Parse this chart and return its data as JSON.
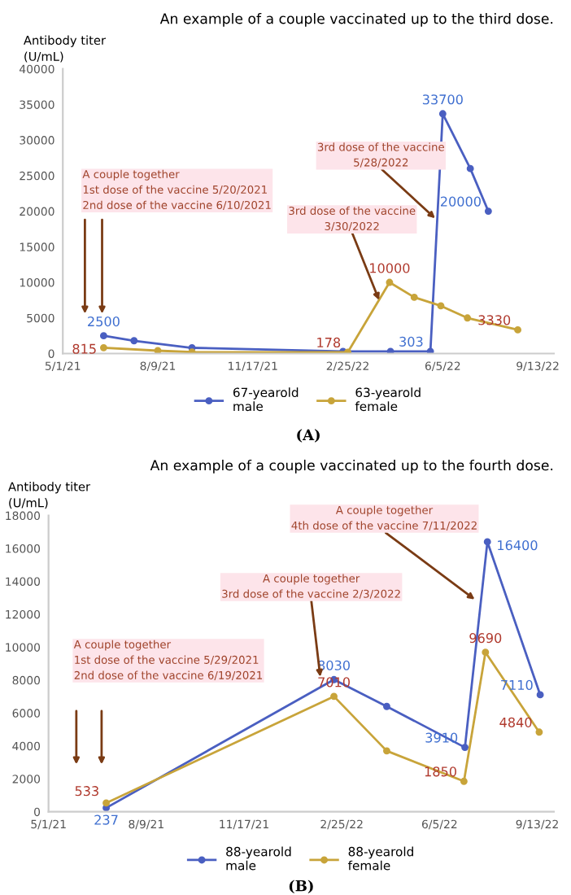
{
  "chart_data": [
    {
      "type": "line",
      "title": "An example of a couple vaccinated up to the third dose.",
      "ylabel": "Antibody titer\n(U/mL)",
      "ylim": [
        0,
        40000
      ],
      "yticks": [
        0,
        5000,
        10000,
        15000,
        20000,
        25000,
        30000,
        35000,
        40000
      ],
      "xlim": [
        "2021-05-01",
        "2022-09-30"
      ],
      "xticks": [
        {
          "value": "2021-05-01",
          "label": "5/1/21"
        },
        {
          "value": "2021-08-09",
          "label": "8/9/21"
        },
        {
          "value": "2021-11-17",
          "label": "11/17/21"
        },
        {
          "value": "2022-02-25",
          "label": "2/25/22"
        },
        {
          "value": "2022-06-05",
          "label": "6/5/22"
        },
        {
          "value": "2022-09-13",
          "label": "9/13/22"
        }
      ],
      "marker": "circle",
      "grid": false,
      "legend": "bottom",
      "series": [
        {
          "name": "67-yearold\nmale",
          "color": "#4a5fc1",
          "x": [
            "2021-06-13",
            "2021-07-15",
            "2021-09-14",
            "2022-02-20",
            "2022-04-11",
            "2022-05-23",
            "2022-06-05",
            "2022-07-04",
            "2022-07-23"
          ],
          "values": [
            2500,
            1800,
            800,
            300,
            300,
            303,
            33700,
            26000,
            20000
          ],
          "value_labels": [
            "2500",
            null,
            null,
            null,
            null,
            "303",
            "33700",
            null,
            "20000"
          ]
        },
        {
          "name": "63-yearold\nfemale",
          "color": "#c8a43a",
          "x": [
            "2021-06-13",
            "2021-08-09",
            "2021-09-14",
            "2022-02-25",
            "2022-04-10",
            "2022-05-06",
            "2022-06-03",
            "2022-07-01",
            "2022-08-23"
          ],
          "values": [
            815,
            400,
            200,
            178,
            10000,
            7900,
            6700,
            5000,
            3330
          ],
          "value_labels": [
            "815",
            null,
            null,
            "178",
            "10000",
            null,
            null,
            null,
            "3330"
          ]
        }
      ],
      "annotations": [
        "A couple together\n1st dose of the vaccine 5/20/2021\n2nd dose of the vaccine 6/10/2021",
        {
          "text": "3rd dose of the vaccine\n3/30/2022",
          "x": "2022-03-30",
          "y": 7500
        },
        {
          "text": "3rd dose of the vaccine\n5/28/2022",
          "x": "2022-05-28",
          "y": 19000
        },
        "(A)"
      ]
    },
    {
      "type": "line",
      "title": "An example of a couple vaccinated up to the fourth dose.",
      "ylabel": "Antibody titer\n(U/mL)",
      "ylim": [
        0,
        18000
      ],
      "yticks": [
        0,
        2000,
        4000,
        6000,
        8000,
        10000,
        12000,
        14000,
        16000,
        18000
      ],
      "xlim": [
        "2021-05-01",
        "2022-09-30"
      ],
      "xticks": [
        {
          "value": "2021-05-01",
          "label": "5/1/21"
        },
        {
          "value": "2021-08-09",
          "label": "8/9/21"
        },
        {
          "value": "2021-11-17",
          "label": "11/17/21"
        },
        {
          "value": "2022-02-25",
          "label": "2/25/22"
        },
        {
          "value": "2022-06-05",
          "label": "6/5/22"
        },
        {
          "value": "2022-09-13",
          "label": "9/13/22"
        }
      ],
      "marker": "circle",
      "grid": false,
      "legend": "bottom",
      "series": [
        {
          "name": "88-yearold\nmale",
          "color": "#4a5fc1",
          "x": [
            "2021-06-29",
            "2022-02-17",
            "2022-04-12",
            "2022-07-01",
            "2022-07-24",
            "2022-09-16"
          ],
          "values": [
            237,
            8030,
            6400,
            3910,
            16400,
            7110
          ],
          "value_labels": [
            "237",
            "8030",
            null,
            "3910",
            "16400",
            "7110"
          ]
        },
        {
          "name": "88-yearold\nfemale",
          "color": "#c8a43a",
          "x": [
            "2021-06-29",
            "2022-02-17",
            "2022-04-12",
            "2022-06-30",
            "2022-07-22",
            "2022-09-15"
          ],
          "values": [
            533,
            7010,
            3700,
            1850,
            9690,
            4840
          ],
          "value_labels": [
            "533",
            "7010",
            null,
            "1850",
            "9690",
            "4840"
          ]
        }
      ],
      "annotations": [
        "A couple together\n1st dose of the vaccine 5/29/2021\n2nd dose of the vaccine 6/19/2021",
        {
          "text": "A couple together\n3rd dose of the vaccine 2/3/2022",
          "x": "2022-02-03",
          "y": 8200
        },
        {
          "text": "A couple together\n4th dose of the vaccine 7/11/2022",
          "x": "2022-07-11",
          "y": 12900
        },
        "(B)"
      ]
    }
  ]
}
